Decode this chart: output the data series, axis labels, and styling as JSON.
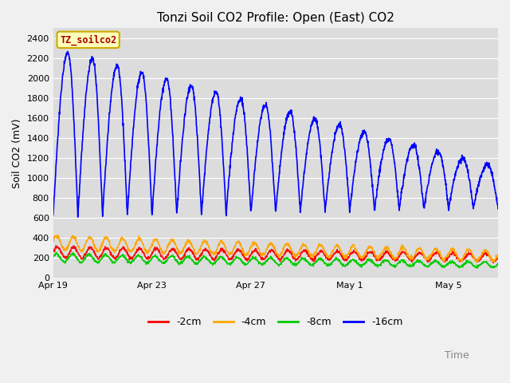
{
  "title": "Tonzi Soil CO2 Profile: Open (East) CO2",
  "ylabel": "Soil CO2 (mV)",
  "xlabel": "Time",
  "label_box": "TZ_soilco2",
  "series_labels": [
    "-2cm",
    "-4cm",
    "-8cm",
    "-16cm"
  ],
  "series_colors": [
    "#ff0000",
    "#ffa500",
    "#00cc00",
    "#0000ff"
  ],
  "ylim": [
    0,
    2500
  ],
  "yticks": [
    0,
    200,
    400,
    600,
    800,
    1000,
    1200,
    1400,
    1600,
    1800,
    2000,
    2200,
    2400
  ],
  "xtick_labels": [
    "Apr 19",
    "Apr 23",
    "Apr 27",
    "May 1",
    "May 5"
  ],
  "xtick_positions": [
    0,
    4,
    8,
    12,
    16
  ],
  "xlim": [
    0,
    18
  ],
  "bg_color": "#dcdcdc",
  "plot_bg_color": "#dcdcdc",
  "linewidth_small": 1.0,
  "linewidth_blue": 1.2,
  "title_fontsize": 11,
  "axis_fontsize": 9,
  "tick_fontsize": 8,
  "legend_fontsize": 9,
  "n_days": 18,
  "pts_per_day": 96
}
